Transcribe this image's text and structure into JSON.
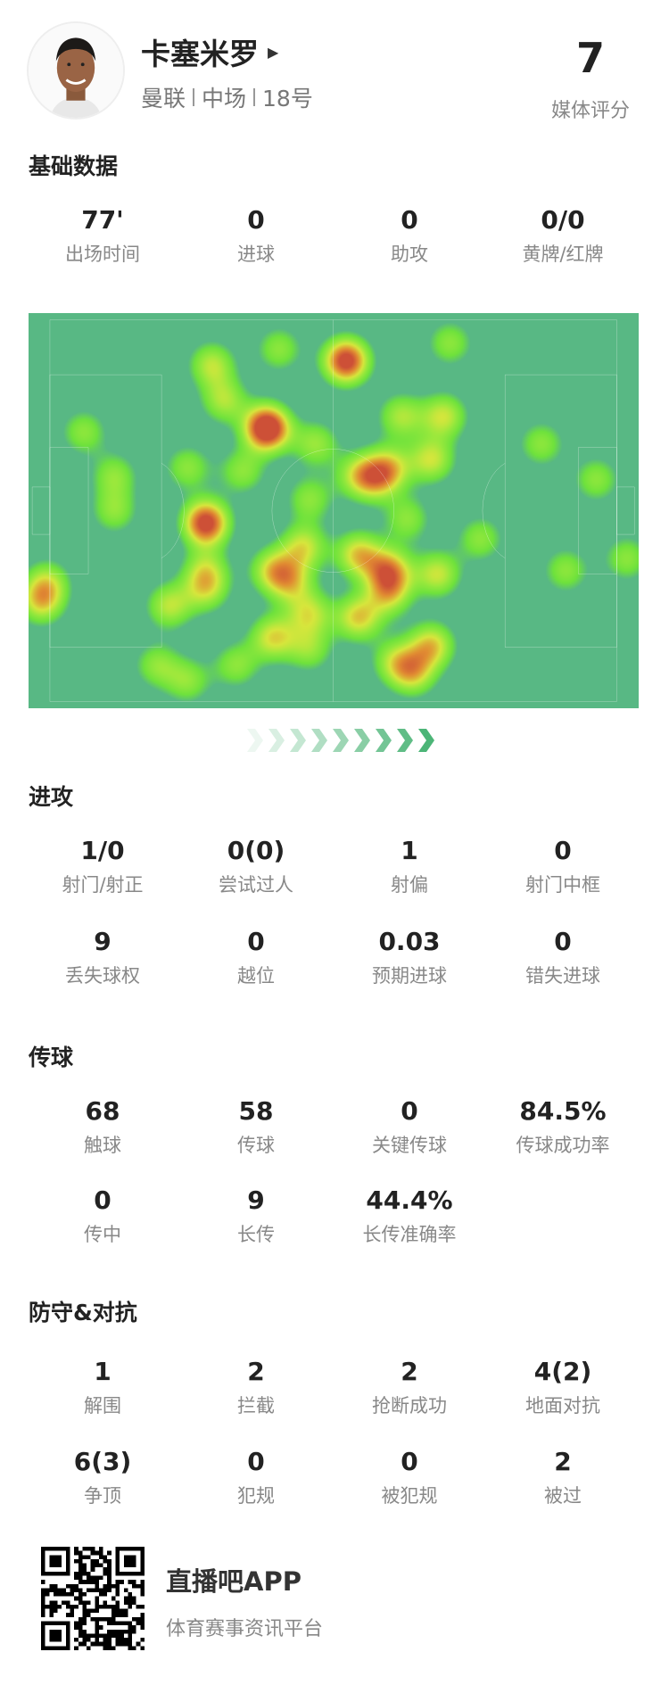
{
  "player": {
    "name": "卡塞米罗",
    "team": "曼联",
    "position": "中场",
    "number": "18号",
    "rating": "7",
    "rating_label": "媒体评分",
    "arrow_icon": "triangle-right-icon"
  },
  "basic": {
    "title": "基础数据",
    "stats": [
      {
        "value": "77'",
        "label": "出场时间"
      },
      {
        "value": "0",
        "label": "进球"
      },
      {
        "value": "0",
        "label": "助攻"
      },
      {
        "value": "0/0",
        "label": "黄牌/红牌"
      }
    ]
  },
  "heatmap": {
    "pitch_color": "#58b884",
    "attack_direction": "right"
  },
  "attack": {
    "title": "进攻",
    "rows": [
      [
        {
          "value": "1/0",
          "label": "射门/射正"
        },
        {
          "value": "0(0)",
          "label": "尝试过人"
        },
        {
          "value": "1",
          "label": "射偏"
        },
        {
          "value": "0",
          "label": "射门中框"
        }
      ],
      [
        {
          "value": "9",
          "label": "丢失球权"
        },
        {
          "value": "0",
          "label": "越位"
        },
        {
          "value": "0.03",
          "label": "预期进球"
        },
        {
          "value": "0",
          "label": "错失进球"
        }
      ]
    ]
  },
  "passing": {
    "title": "传球",
    "rows": [
      [
        {
          "value": "68",
          "label": "触球"
        },
        {
          "value": "58",
          "label": "传球"
        },
        {
          "value": "0",
          "label": "关键传球"
        },
        {
          "value": "84.5%",
          "label": "传球成功率"
        }
      ],
      [
        {
          "value": "0",
          "label": "传中"
        },
        {
          "value": "9",
          "label": "长传"
        },
        {
          "value": "44.4%",
          "label": "长传准确率"
        }
      ]
    ]
  },
  "defense": {
    "title": "防守&对抗",
    "rows": [
      [
        {
          "value": "1",
          "label": "解围"
        },
        {
          "value": "2",
          "label": "拦截"
        },
        {
          "value": "2",
          "label": "抢断成功"
        },
        {
          "value": "4(2)",
          "label": "地面对抗"
        }
      ],
      [
        {
          "value": "6(3)",
          "label": "争顶"
        },
        {
          "value": "0",
          "label": "犯规"
        },
        {
          "value": "0",
          "label": "被犯规"
        },
        {
          "value": "2",
          "label": "被过"
        }
      ]
    ]
  },
  "footer": {
    "app_name": "直播吧APP",
    "slogan": "体育赛事资讯平台"
  }
}
